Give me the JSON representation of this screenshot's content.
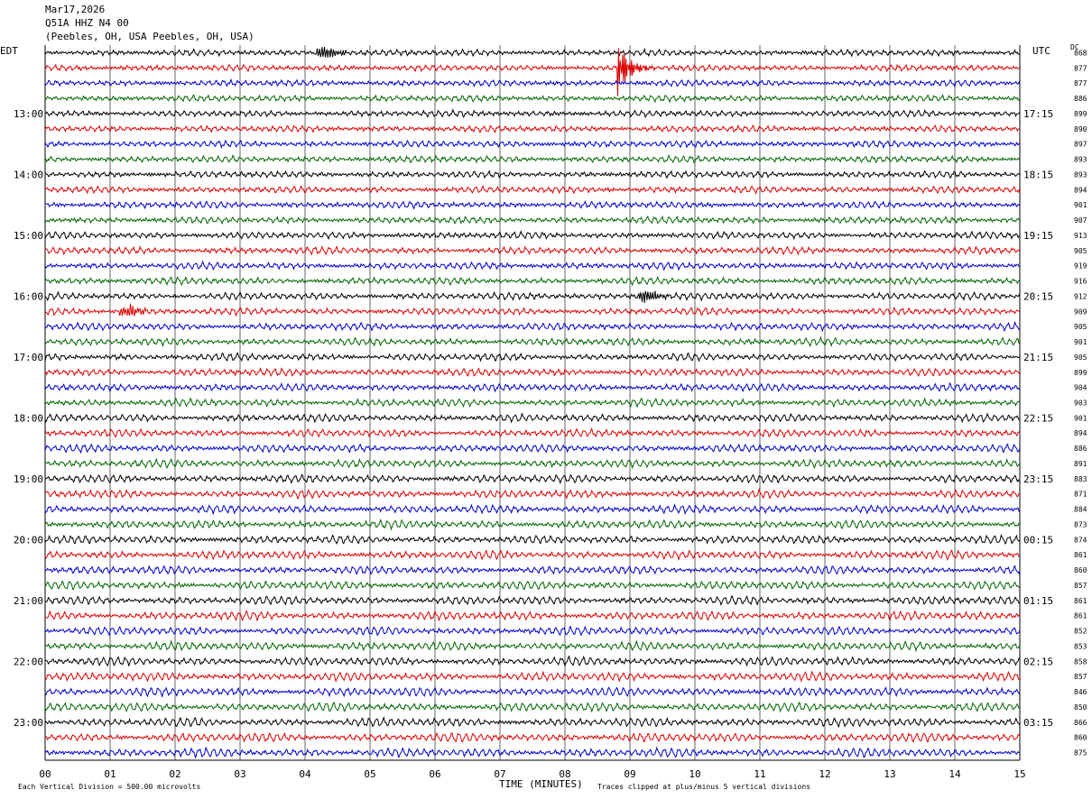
{
  "header": {
    "date": "Mar17,2026",
    "station": "Q51A HHZ N4 00",
    "location": "(Peebles, OH, USA Peebles, OH, USA)"
  },
  "left_zone": "EDT",
  "right_zone": "UTC",
  "dc_label": "DC",
  "footer": {
    "scale": "Each Vertical Division =  500.00 microvolts",
    "xlabel": "TIME (MINUTES)",
    "clip": "Traces clipped at plus/minus 5 vertical divisions"
  },
  "colors": [
    "#000000",
    "#dd0000",
    "#0000cc",
    "#006600"
  ],
  "chart_data": {
    "type": "line",
    "title": "Q51A HHZ N4 00",
    "xlabel": "TIME (MINUTES)",
    "xlim": [
      0,
      15
    ],
    "x_ticks": [
      "00",
      "01",
      "02",
      "03",
      "04",
      "05",
      "06",
      "07",
      "08",
      "09",
      "10",
      "11",
      "12",
      "13",
      "14",
      "15"
    ],
    "left_hour_labels": [
      "13:00",
      "14:00",
      "15:00",
      "16:00",
      "17:00",
      "18:00",
      "19:00",
      "20:00",
      "21:00",
      "22:00",
      "23:00"
    ],
    "right_hour_labels": [
      "17:15",
      "18:15",
      "19:15",
      "20:15",
      "21:15",
      "22:15",
      "23:15",
      "00:15",
      "01:15",
      "02:15",
      "03:15"
    ],
    "dc_offsets": [
      868,
      877,
      877,
      886,
      899,
      890,
      897,
      893,
      893,
      894,
      901,
      907,
      913,
      905,
      919,
      916,
      912,
      909,
      905,
      901,
      905,
      899,
      904,
      903,
      901,
      894,
      886,
      891,
      883,
      871,
      884,
      873,
      874,
      861,
      860,
      857,
      861,
      861,
      852,
      853,
      858,
      857,
      846,
      850,
      866,
      860,
      875
    ],
    "trace_count": 47,
    "trace_minutes": 15,
    "events": [
      {
        "trace": 1,
        "minute": 8.8,
        "type": "clipped spike"
      },
      {
        "trace": 16,
        "minute": 9.15,
        "type": "burst"
      },
      {
        "trace": 0,
        "minute": 4.2,
        "type": "burst"
      },
      {
        "trace": 17,
        "minute": 1.2,
        "type": "burst"
      }
    ]
  }
}
